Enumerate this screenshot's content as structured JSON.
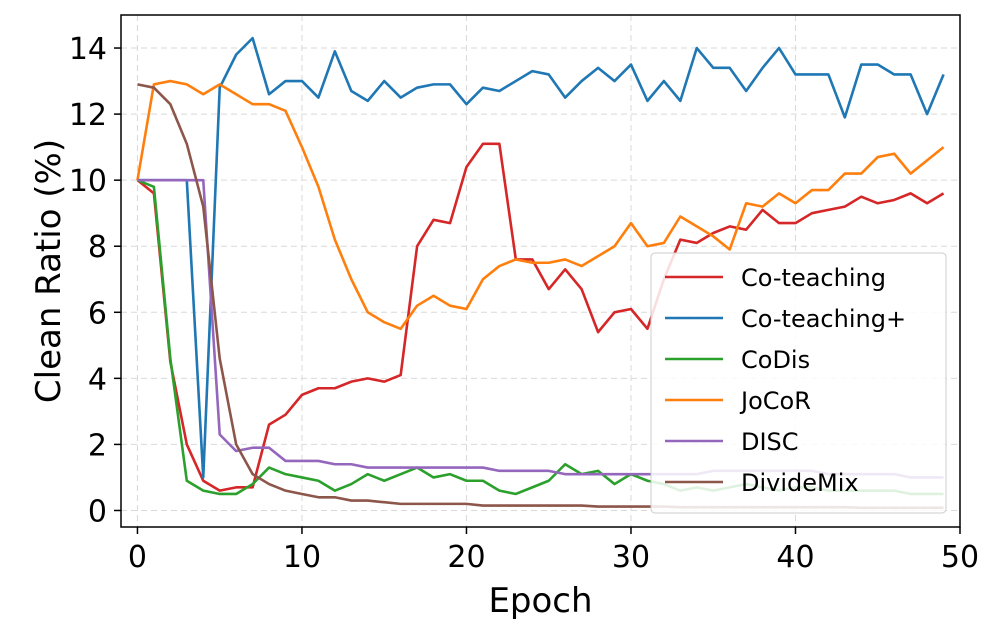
{
  "chart_data": {
    "type": "line",
    "title": "",
    "xlabel": "Epoch",
    "ylabel": "Clean Ratio (%)",
    "xlim": [
      -1,
      50
    ],
    "ylim": [
      -0.5,
      15
    ],
    "xticks": [
      0,
      10,
      20,
      30,
      40,
      50
    ],
    "yticks": [
      0,
      2,
      4,
      6,
      8,
      10,
      12,
      14
    ],
    "grid": true,
    "legend_position": "lower-right",
    "x": [
      0,
      1,
      2,
      3,
      4,
      5,
      6,
      7,
      8,
      9,
      10,
      11,
      12,
      13,
      14,
      15,
      16,
      17,
      18,
      19,
      20,
      21,
      22,
      23,
      24,
      25,
      26,
      27,
      28,
      29,
      30,
      31,
      32,
      33,
      34,
      35,
      36,
      37,
      38,
      39,
      40,
      41,
      42,
      43,
      44,
      45,
      46,
      47,
      48,
      49
    ],
    "series": [
      {
        "name": "Co-teaching",
        "color": "#d62728",
        "values": [
          10.0,
          9.6,
          4.5,
          2.0,
          0.9,
          0.6,
          0.7,
          0.7,
          2.6,
          2.9,
          3.5,
          3.7,
          3.7,
          3.9,
          4.0,
          3.9,
          4.1,
          8.0,
          8.8,
          8.7,
          10.4,
          11.1,
          11.1,
          7.6,
          7.6,
          6.7,
          7.3,
          6.7,
          5.4,
          6.0,
          6.1,
          5.5,
          7.0,
          8.2,
          8.1,
          8.4,
          8.6,
          8.5,
          9.1,
          8.7,
          8.7,
          9.0,
          9.1,
          9.2,
          9.5,
          9.3,
          9.4,
          9.6,
          9.3,
          9.6
        ]
      },
      {
        "name": "Co-teaching+",
        "color": "#1f77b4",
        "values": [
          10.0,
          10.0,
          10.0,
          10.0,
          1.0,
          12.8,
          13.8,
          14.3,
          12.6,
          13.0,
          13.0,
          12.5,
          13.9,
          12.7,
          12.4,
          13.0,
          12.5,
          12.8,
          12.9,
          12.9,
          12.3,
          12.8,
          12.7,
          13.0,
          13.3,
          13.2,
          12.5,
          13.0,
          13.4,
          13.0,
          13.5,
          12.4,
          13.0,
          12.4,
          14.0,
          13.4,
          13.4,
          12.7,
          13.4,
          14.0,
          13.2,
          13.2,
          13.2,
          11.9,
          13.5,
          13.5,
          13.2,
          13.2,
          12.0,
          13.2
        ]
      },
      {
        "name": "CoDis",
        "color": "#2ca02c",
        "values": [
          10.0,
          9.8,
          4.6,
          0.9,
          0.6,
          0.5,
          0.5,
          0.8,
          1.3,
          1.1,
          1.0,
          0.9,
          0.6,
          0.8,
          1.1,
          0.9,
          1.1,
          1.3,
          1.0,
          1.1,
          0.9,
          0.9,
          0.6,
          0.5,
          0.7,
          0.9,
          1.4,
          1.1,
          1.2,
          0.8,
          1.1,
          0.9,
          0.8,
          0.6,
          0.7,
          0.6,
          0.7,
          0.8,
          0.7,
          0.6,
          0.7,
          0.7,
          0.6,
          0.6,
          0.6,
          0.6,
          0.6,
          0.5,
          0.5,
          0.5
        ]
      },
      {
        "name": "JoCoR",
        "color": "#ff7f0e",
        "values": [
          10.0,
          12.9,
          13.0,
          12.9,
          12.6,
          12.9,
          12.6,
          12.3,
          12.3,
          12.1,
          11.0,
          9.8,
          8.2,
          7.0,
          6.0,
          5.7,
          5.5,
          6.2,
          6.5,
          6.2,
          6.1,
          7.0,
          7.4,
          7.6,
          7.5,
          7.5,
          7.6,
          7.4,
          7.7,
          8.0,
          8.7,
          8.0,
          8.1,
          8.9,
          8.6,
          8.3,
          7.9,
          9.3,
          9.2,
          9.6,
          9.3,
          9.7,
          9.7,
          10.2,
          10.2,
          10.7,
          10.8,
          10.2,
          10.6,
          11.0
        ]
      },
      {
        "name": "DISC",
        "color": "#9467bd",
        "values": [
          10.0,
          10.0,
          10.0,
          10.0,
          10.0,
          2.3,
          1.8,
          1.9,
          1.9,
          1.5,
          1.5,
          1.5,
          1.4,
          1.4,
          1.3,
          1.3,
          1.3,
          1.3,
          1.3,
          1.3,
          1.3,
          1.3,
          1.2,
          1.2,
          1.2,
          1.2,
          1.1,
          1.1,
          1.1,
          1.1,
          1.1,
          1.1,
          1.1,
          1.1,
          1.1,
          1.2,
          1.2,
          1.2,
          1.2,
          1.2,
          1.2,
          1.2,
          1.1,
          1.1,
          1.1,
          1.1,
          1.1,
          1.0,
          1.0,
          1.0
        ]
      },
      {
        "name": "DivideMix",
        "color": "#8c564b",
        "values": [
          12.9,
          12.8,
          12.3,
          11.1,
          9.2,
          4.6,
          2.0,
          1.1,
          0.8,
          0.6,
          0.5,
          0.4,
          0.4,
          0.3,
          0.3,
          0.25,
          0.2,
          0.2,
          0.2,
          0.2,
          0.2,
          0.15,
          0.15,
          0.15,
          0.15,
          0.15,
          0.15,
          0.15,
          0.12,
          0.12,
          0.12,
          0.12,
          0.12,
          0.1,
          0.1,
          0.1,
          0.1,
          0.1,
          0.1,
          0.1,
          0.1,
          0.1,
          0.1,
          0.1,
          0.08,
          0.08,
          0.08,
          0.08,
          0.08,
          0.08
        ]
      }
    ]
  }
}
